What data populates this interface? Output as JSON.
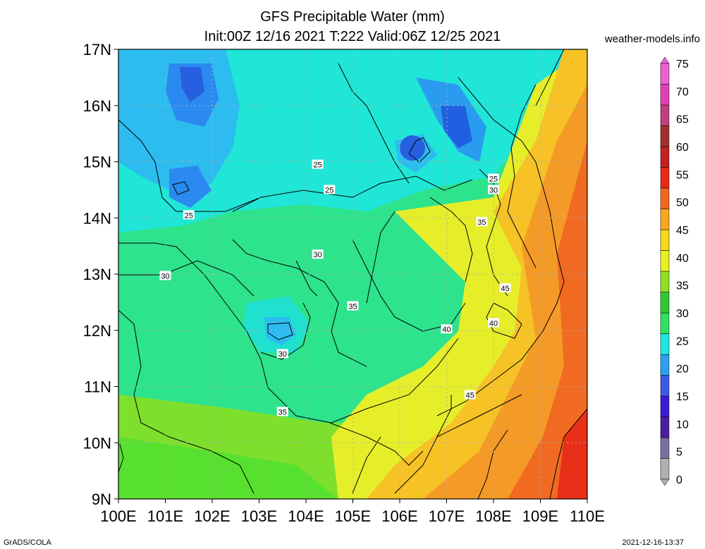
{
  "header": {
    "title_line1": "GFS Precipitable Water (mm)",
    "title_line2": "Init:00Z 12/16 2021 T:222 Valid:06Z 12/25 2021",
    "site": "weather-models.info"
  },
  "footer": {
    "left": "GrADS/COLA",
    "right": "2021-12-16-13:37"
  },
  "map": {
    "lon_range": [
      100,
      110
    ],
    "lat_range": [
      9,
      17
    ],
    "lat_labels": [
      "17N",
      "16N",
      "15N",
      "14N",
      "13N",
      "12N",
      "11N",
      "10N",
      "9N"
    ],
    "lon_labels": [
      "100E",
      "101E",
      "102E",
      "103E",
      "104E",
      "105E",
      "106E",
      "107E",
      "108E",
      "109E",
      "110E"
    ],
    "contour_labels": [
      {
        "text": "25",
        "lon": 104.25,
        "lat": 14.95
      },
      {
        "text": "25",
        "lon": 104.5,
        "lat": 14.5
      },
      {
        "text": "25",
        "lon": 101.5,
        "lat": 14.05
      },
      {
        "text": "25",
        "lon": 108.0,
        "lat": 14.7
      },
      {
        "text": "30",
        "lon": 108.0,
        "lat": 14.5
      },
      {
        "text": "35",
        "lon": 107.75,
        "lat": 13.93
      },
      {
        "text": "30",
        "lon": 104.25,
        "lat": 13.35
      },
      {
        "text": "30",
        "lon": 101.0,
        "lat": 12.97
      },
      {
        "text": "35",
        "lon": 105.0,
        "lat": 12.43
      },
      {
        "text": "45",
        "lon": 108.25,
        "lat": 12.75
      },
      {
        "text": "40",
        "lon": 107.0,
        "lat": 12.02
      },
      {
        "text": "40",
        "lon": 108.0,
        "lat": 12.13
      },
      {
        "text": "30",
        "lon": 103.5,
        "lat": 11.58
      },
      {
        "text": "45",
        "lon": 107.5,
        "lat": 10.85
      },
      {
        "text": "35",
        "lon": 103.5,
        "lat": 10.55
      }
    ]
  },
  "colorbar": {
    "labels": [
      "75",
      "70",
      "65",
      "60",
      "55",
      "50",
      "45",
      "40",
      "35",
      "30",
      "25",
      "20",
      "15",
      "10",
      "5",
      "0"
    ],
    "colors": [
      "#b0b0b0",
      "#7a6ea0",
      "#4b1fa0",
      "#3a1ad6",
      "#3c5ae6",
      "#2ba0f0",
      "#20e8e0",
      "#30e060",
      "#30c830",
      "#90e020",
      "#e8f020",
      "#f8d818",
      "#f8a820",
      "#f06820",
      "#e82818",
      "#c02020",
      "#a03030",
      "#c04080",
      "#e040b0",
      "#f060d0"
    ]
  }
}
